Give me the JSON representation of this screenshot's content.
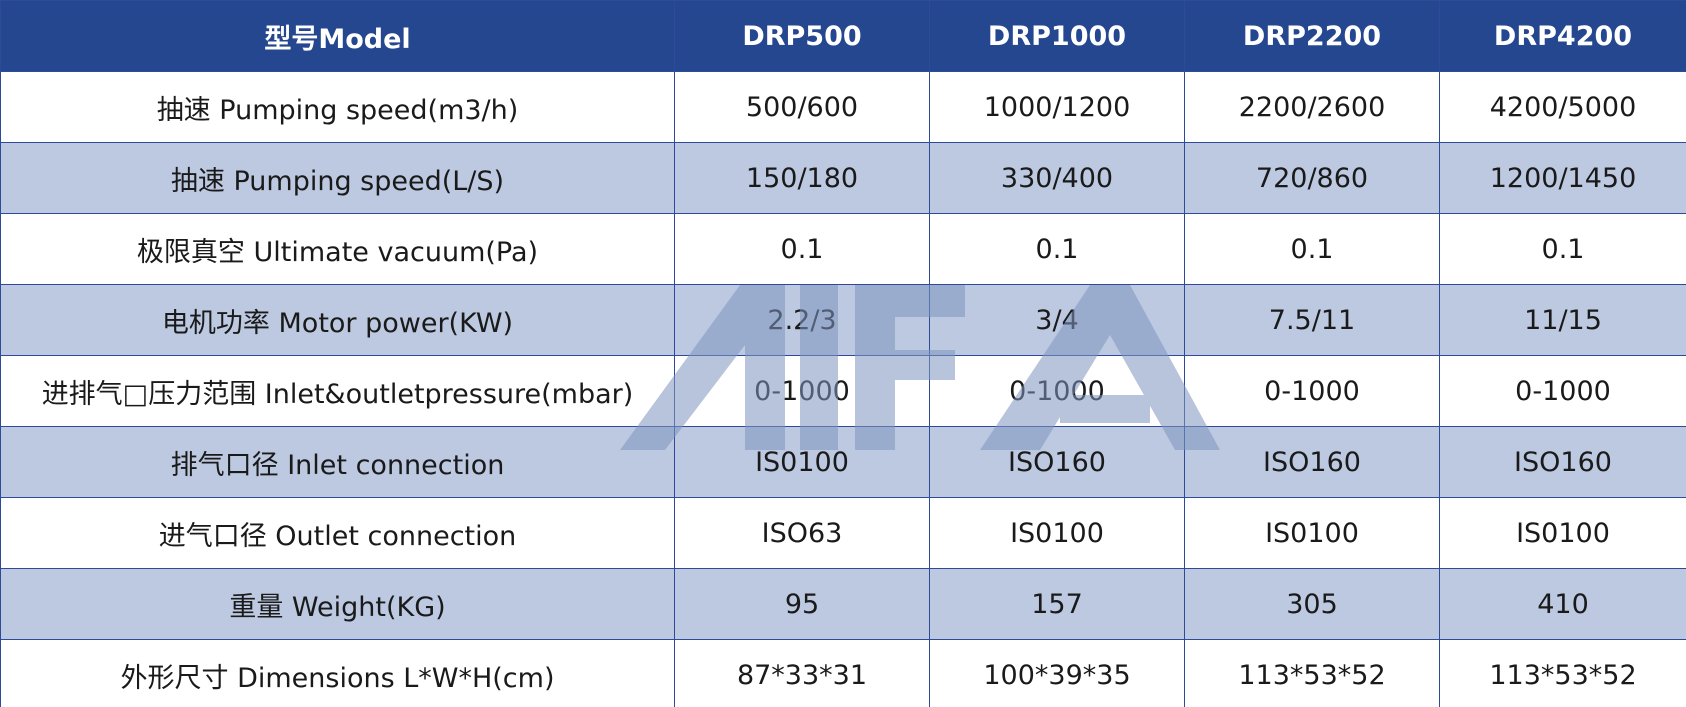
{
  "table": {
    "headers": [
      "型号Model",
      "DRP500",
      "DRP1000",
      "DRP2200",
      "DRP4200"
    ],
    "rows": [
      [
        "抽速 Pumping speed(m3/h)",
        "500/600",
        "1000/1200",
        "2200/2600",
        "4200/5000"
      ],
      [
        "抽速 Pumping speed(L/S)",
        "150/180",
        "330/400",
        "720/860",
        "1200/1450"
      ],
      [
        "极限真空 Ultimate vacuum(Pa)",
        "0.1",
        "0.1",
        "0.1",
        "0.1"
      ],
      [
        "电机功率 Motor power(KW)",
        "2.2/3",
        "3/4",
        "7.5/11",
        "11/15"
      ],
      [
        "进排气□压力范围 Inlet&outletpressure(mbar)",
        "0-1000",
        "0-1000",
        "0-1000",
        "0-1000"
      ],
      [
        "排气口径 Inlet connection",
        "IS0100",
        "ISO160",
        "ISO160",
        "ISO160"
      ],
      [
        "进气口径 Outlet connection",
        "ISO63",
        "IS0100",
        "IS0100",
        "IS0100"
      ],
      [
        "重量 Weight(KG)",
        "95",
        "157",
        "305",
        "410"
      ],
      [
        "外形尺寸 Dimensions L*W*H(cm)",
        "87*33*31",
        "100*39*35",
        "113*53*52",
        "113*53*52"
      ]
    ]
  },
  "watermark": {
    "text": "AIFA",
    "color": "#8fa3c8"
  },
  "colors": {
    "header_bg": "#24478f",
    "header_text": "#ffffff",
    "row_alt_bg": "#bcc8e0",
    "border": "#2f4a9a"
  }
}
